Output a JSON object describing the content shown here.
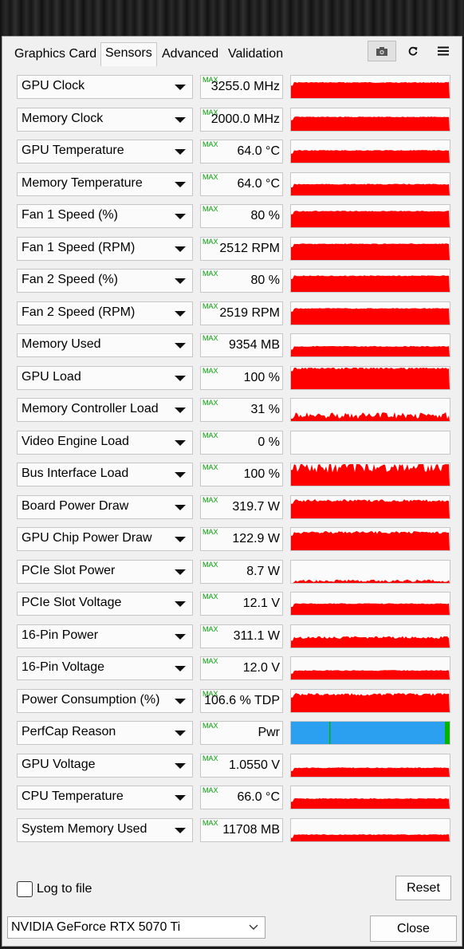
{
  "tabs": [
    "Graphics Card",
    "Sensors",
    "Advanced",
    "Validation"
  ],
  "active_tab": "Sensors",
  "toolbar": {
    "camera_icon": "camera-icon",
    "refresh_icon": "refresh-icon",
    "menu_icon": "hamburger-menu-icon"
  },
  "max_label": "MAX",
  "colors": {
    "graph_red": "#ff0000",
    "perfcap_blue": "#2b9ff0",
    "perfcap_green": "#00b400",
    "max_green": "#00a000"
  },
  "sensors": [
    {
      "name": "GPU Clock",
      "value": "3255.0 MHz",
      "level": 0.7
    },
    {
      "name": "Memory Clock",
      "value": "2000.0 MHz",
      "level": 0.62
    },
    {
      "name": "GPU Temperature",
      "value": "64.0 °C",
      "level": 0.55
    },
    {
      "name": "Memory Temperature",
      "value": "64.0 °C",
      "level": 0.5
    },
    {
      "name": "Fan 1 Speed (%)",
      "value": "80 %",
      "level": 0.72
    },
    {
      "name": "Fan 1 Speed (RPM)",
      "value": "2512 RPM",
      "level": 0.72
    },
    {
      "name": "Fan 2 Speed (%)",
      "value": "80 %",
      "level": 0.72
    },
    {
      "name": "Fan 2 Speed (RPM)",
      "value": "2519 RPM",
      "level": 0.72
    },
    {
      "name": "Memory Used",
      "value": "9354 MB",
      "level": 0.45
    },
    {
      "name": "GPU Load",
      "value": "100 %",
      "level": 0.95
    },
    {
      "name": "Memory Controller Load",
      "value": "31 %",
      "level": 0.25
    },
    {
      "name": "Video Engine Load",
      "value": "0 %",
      "level": 0.0
    },
    {
      "name": "Bus Interface Load",
      "value": "100 %",
      "level": 0.85
    },
    {
      "name": "Board Power Draw",
      "value": "319.7 W",
      "level": 0.8
    },
    {
      "name": "GPU Chip Power Draw",
      "value": "122.9 W",
      "level": 0.8
    },
    {
      "name": "PCIe Slot Power",
      "value": "8.7 W",
      "level": 0.1
    },
    {
      "name": "PCIe Slot Voltage",
      "value": "12.1 V",
      "level": 0.5
    },
    {
      "name": "16-Pin Power",
      "value": "311.1 W",
      "level": 0.45
    },
    {
      "name": "16-Pin Voltage",
      "value": "12.0 V",
      "level": 0.4
    },
    {
      "name": "Power Consumption (%)",
      "value": "106.6 % TDP",
      "level": 0.8
    },
    {
      "name": "PerfCap Reason",
      "value": "Pwr",
      "level": 1.0
    },
    {
      "name": "GPU Voltage",
      "value": "1.0550 V",
      "level": 0.4
    },
    {
      "name": "CPU Temperature",
      "value": "66.0 °C",
      "level": 0.45
    },
    {
      "name": "System Memory Used",
      "value": "11708 MB",
      "level": 0.3
    }
  ],
  "log_to_file": {
    "label": "Log to file",
    "checked": false
  },
  "reset_label": "Reset",
  "gpu_select": {
    "value": "NVIDIA GeForce RTX 5070 Ti"
  },
  "close_label": "Close"
}
